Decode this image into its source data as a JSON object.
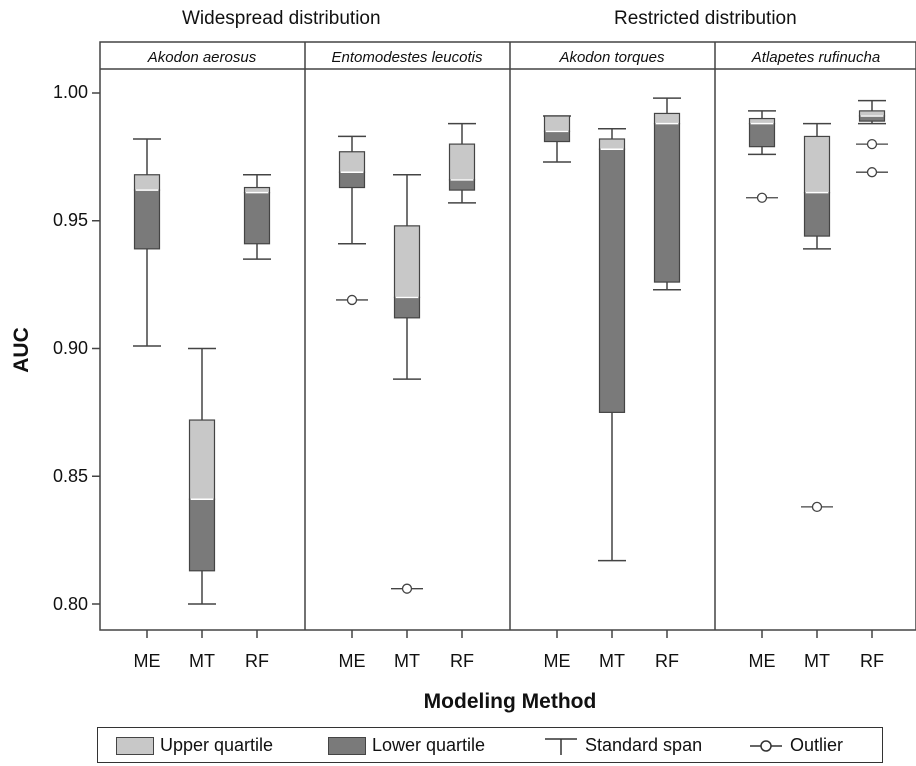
{
  "chart_data": {
    "type": "boxplot",
    "group_titles": [
      "Widespread distribution",
      "Restricted distribution"
    ],
    "ylabel": "AUC",
    "xlabel": "Modeling Method",
    "ylim": [
      0.79,
      1.01
    ],
    "yticks": [
      "0.80",
      "0.85",
      "0.90",
      "0.95",
      "1.00"
    ],
    "ytick_values": [
      0.8,
      0.85,
      0.9,
      0.95,
      1.0
    ],
    "categories": [
      "ME",
      "MT",
      "RF"
    ],
    "panels": [
      {
        "title": "Akodon aerosus",
        "boxes": [
          {
            "method": "ME",
            "whisker_low": 0.901,
            "q1": 0.939,
            "median": 0.962,
            "q3": 0.968,
            "whisker_high": 0.982,
            "outliers": []
          },
          {
            "method": "MT",
            "whisker_low": 0.8,
            "q1": 0.813,
            "median": 0.841,
            "q3": 0.872,
            "whisker_high": 0.9,
            "outliers": []
          },
          {
            "method": "RF",
            "whisker_low": 0.935,
            "q1": 0.941,
            "median": 0.961,
            "q3": 0.963,
            "whisker_high": 0.968,
            "outliers": []
          }
        ]
      },
      {
        "title": "Entomodestes leucotis",
        "boxes": [
          {
            "method": "ME",
            "whisker_low": 0.941,
            "q1": 0.963,
            "median": 0.969,
            "q3": 0.977,
            "whisker_high": 0.983,
            "outliers": [
              0.919
            ]
          },
          {
            "method": "MT",
            "whisker_low": 0.888,
            "q1": 0.912,
            "median": 0.92,
            "q3": 0.948,
            "whisker_high": 0.968,
            "outliers": [
              0.806
            ]
          },
          {
            "method": "RF",
            "whisker_low": 0.957,
            "q1": 0.962,
            "median": 0.966,
            "q3": 0.98,
            "whisker_high": 0.988,
            "outliers": []
          }
        ]
      },
      {
        "title": "Akodon torques",
        "boxes": [
          {
            "method": "ME",
            "whisker_low": 0.973,
            "q1": 0.981,
            "median": 0.985,
            "q3": 0.991,
            "whisker_high": 0.991,
            "outliers": []
          },
          {
            "method": "MT",
            "whisker_low": 0.817,
            "q1": 0.875,
            "median": 0.978,
            "q3": 0.982,
            "whisker_high": 0.986,
            "outliers": []
          },
          {
            "method": "RF",
            "whisker_low": 0.923,
            "q1": 0.926,
            "median": 0.988,
            "q3": 0.992,
            "whisker_high": 0.998,
            "outliers": []
          }
        ]
      },
      {
        "title": "Atlapetes rufinucha",
        "boxes": [
          {
            "method": "ME",
            "whisker_low": 0.976,
            "q1": 0.979,
            "median": 0.988,
            "q3": 0.99,
            "whisker_high": 0.993,
            "outliers": [
              0.959
            ]
          },
          {
            "method": "MT",
            "whisker_low": 0.939,
            "q1": 0.944,
            "median": 0.961,
            "q3": 0.983,
            "whisker_high": 0.988,
            "outliers": [
              0.838
            ]
          },
          {
            "method": "RF",
            "whisker_low": 0.988,
            "q1": 0.989,
            "median": 0.991,
            "q3": 0.993,
            "whisker_high": 0.997,
            "outliers": [
              0.98,
              0.969
            ]
          }
        ]
      }
    ],
    "legend": {
      "position": "bottom",
      "items": [
        "Upper quartile",
        "Lower quartile",
        "Standard span",
        "Outlier"
      ]
    },
    "colors": {
      "upper_quartile": "#c8c8c8",
      "lower_quartile": "#7a7a7a",
      "median_line": "#ffffff",
      "stroke": "#444444"
    },
    "grid": false
  }
}
